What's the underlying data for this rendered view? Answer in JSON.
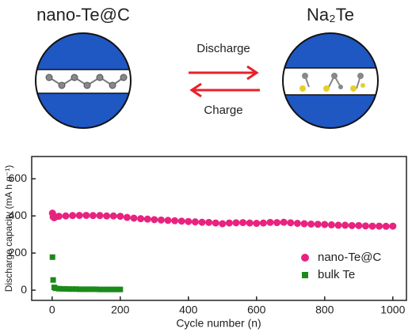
{
  "diagram": {
    "left_label": "nano-Te@C",
    "right_label": "Na₂Te",
    "forward_label": "Discharge",
    "backward_label": "Charge"
  },
  "chart_data": {
    "type": "scatter",
    "x_label": "Cycle number (n)",
    "y_label": "Discharge capacity (mA h g⁻¹)",
    "xlim": [
      -60,
      1040
    ],
    "xticks": [
      0,
      200,
      400,
      600,
      800,
      1000
    ],
    "ylim": [
      -55,
      720
    ],
    "yticks": [
      0,
      200,
      400,
      600
    ],
    "legend": "lower right",
    "series": [
      {
        "name": "nano-Te@C",
        "color": "#e8237f",
        "marker": "circle",
        "x": [
          1,
          3,
          6,
          10,
          20,
          40,
          60,
          80,
          100,
          120,
          140,
          160,
          180,
          200,
          220,
          240,
          260,
          280,
          300,
          320,
          340,
          360,
          380,
          400,
          420,
          440,
          460,
          480,
          500,
          520,
          540,
          560,
          580,
          600,
          620,
          640,
          660,
          680,
          700,
          720,
          740,
          760,
          780,
          800,
          820,
          840,
          860,
          880,
          900,
          920,
          940,
          960,
          980,
          1000
        ],
        "values": [
          415,
          395,
          390,
          395,
          398,
          400,
          402,
          403,
          403,
          402,
          402,
          400,
          400,
          398,
          392,
          388,
          385,
          383,
          380,
          378,
          376,
          374,
          372,
          370,
          368,
          366,
          365,
          362,
          358,
          362,
          363,
          364,
          362,
          360,
          362,
          365,
          364,
          366,
          363,
          360,
          358,
          356,
          355,
          354,
          352,
          350,
          350,
          348,
          348,
          346,
          345,
          345,
          344,
          345
        ]
      },
      {
        "name": "bulk Te",
        "color": "#1a8a1a",
        "marker": "square",
        "x": [
          1,
          3,
          6,
          10,
          20,
          30,
          40,
          50,
          60,
          70,
          80,
          90,
          100,
          110,
          120,
          130,
          140,
          150,
          160,
          170,
          180,
          190,
          200
        ],
        "values": [
          178,
          55,
          15,
          10,
          8,
          7,
          7,
          6,
          6,
          6,
          5,
          5,
          5,
          5,
          5,
          5,
          4,
          4,
          4,
          4,
          4,
          4,
          4
        ]
      }
    ]
  }
}
